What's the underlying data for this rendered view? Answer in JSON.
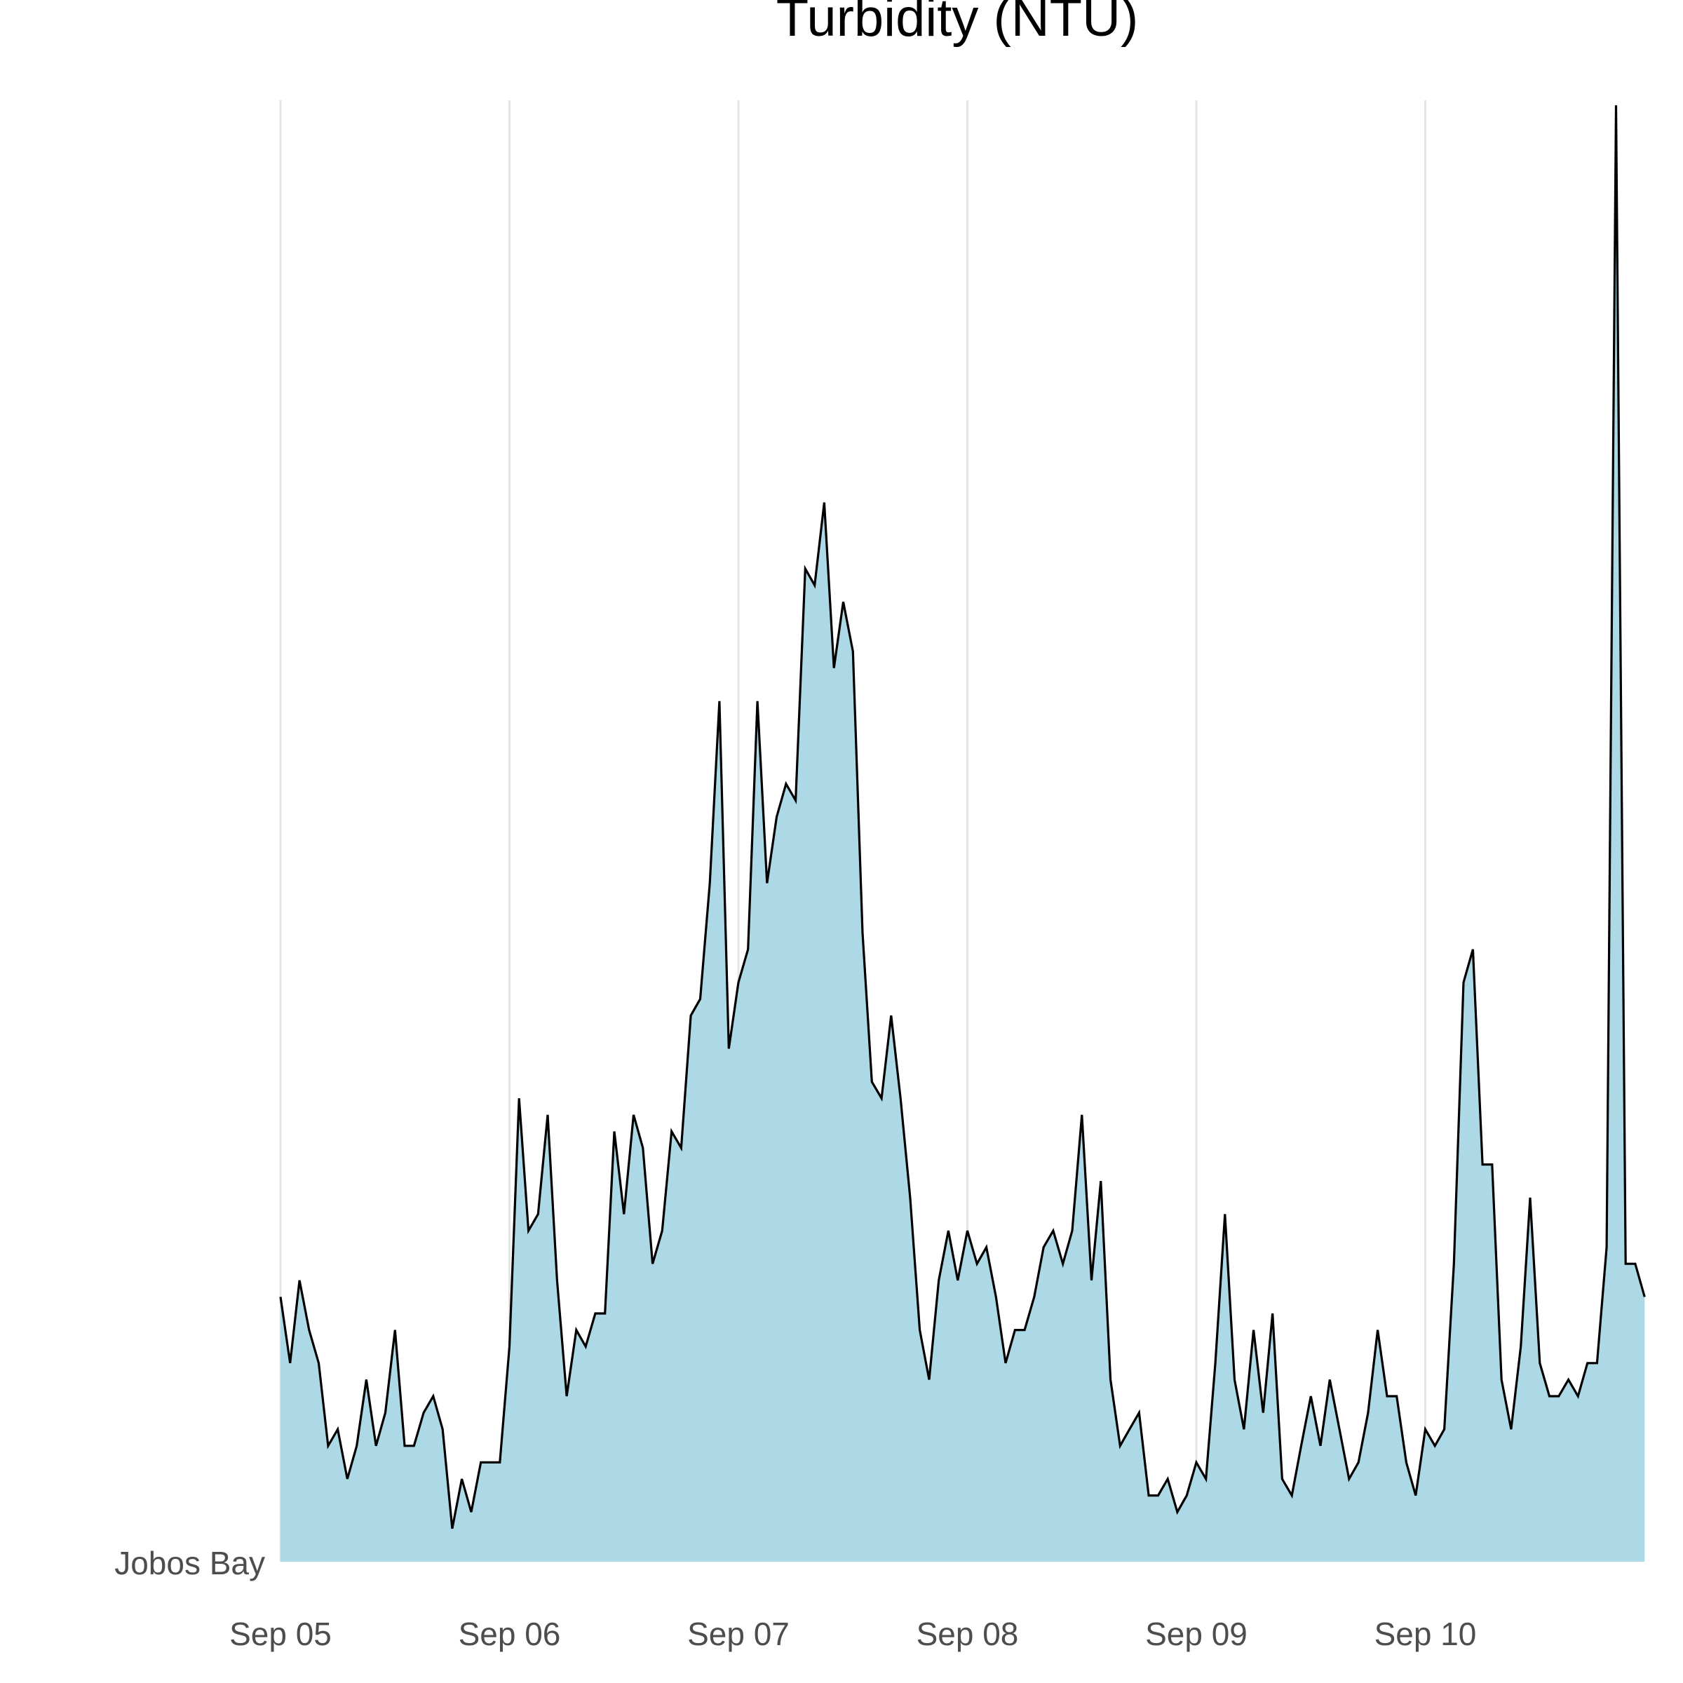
{
  "chart_data": {
    "type": "area",
    "title": "Turbidity (NTU)",
    "xlabel": "",
    "ylabel": "",
    "series_name": "Jobos Bay",
    "x_ticks": [
      "Sep 05",
      "Sep 06",
      "Sep 07",
      "Sep 08",
      "Sep 09",
      "Sep 10"
    ],
    "x_range_days": [
      0,
      5.96
    ],
    "grid": {
      "vertical": true,
      "horizontal": false
    },
    "colors": {
      "fill": "#add8e6",
      "line": "#000000",
      "grid": "#e5e5e5"
    },
    "points": [
      [
        0.0,
        160
      ],
      [
        0.042,
        120
      ],
      [
        0.083,
        170
      ],
      [
        0.125,
        140
      ],
      [
        0.167,
        120
      ],
      [
        0.208,
        70
      ],
      [
        0.25,
        80
      ],
      [
        0.292,
        50
      ],
      [
        0.333,
        70
      ],
      [
        0.375,
        110
      ],
      [
        0.417,
        70
      ],
      [
        0.458,
        90
      ],
      [
        0.5,
        140
      ],
      [
        0.542,
        70
      ],
      [
        0.583,
        70
      ],
      [
        0.625,
        90
      ],
      [
        0.667,
        100
      ],
      [
        0.708,
        80
      ],
      [
        0.75,
        20
      ],
      [
        0.792,
        50
      ],
      [
        0.833,
        30
      ],
      [
        0.875,
        60
      ],
      [
        0.917,
        60
      ],
      [
        0.958,
        60
      ],
      [
        1.0,
        130
      ],
      [
        1.042,
        280
      ],
      [
        1.083,
        200
      ],
      [
        1.125,
        210
      ],
      [
        1.167,
        270
      ],
      [
        1.208,
        170
      ],
      [
        1.25,
        100
      ],
      [
        1.292,
        140
      ],
      [
        1.333,
        130
      ],
      [
        1.375,
        150
      ],
      [
        1.417,
        150
      ],
      [
        1.458,
        260
      ],
      [
        1.5,
        210
      ],
      [
        1.542,
        270
      ],
      [
        1.583,
        250
      ],
      [
        1.625,
        180
      ],
      [
        1.667,
        200
      ],
      [
        1.708,
        260
      ],
      [
        1.75,
        250
      ],
      [
        1.792,
        330
      ],
      [
        1.833,
        340
      ],
      [
        1.875,
        410
      ],
      [
        1.917,
        520
      ],
      [
        1.958,
        310
      ],
      [
        2.0,
        350
      ],
      [
        2.042,
        370
      ],
      [
        2.083,
        520
      ],
      [
        2.125,
        410
      ],
      [
        2.167,
        450
      ],
      [
        2.208,
        470
      ],
      [
        2.25,
        460
      ],
      [
        2.292,
        600
      ],
      [
        2.333,
        590
      ],
      [
        2.375,
        640
      ],
      [
        2.417,
        540
      ],
      [
        2.458,
        580
      ],
      [
        2.5,
        550
      ],
      [
        2.542,
        380
      ],
      [
        2.583,
        290
      ],
      [
        2.625,
        280
      ],
      [
        2.667,
        330
      ],
      [
        2.708,
        280
      ],
      [
        2.75,
        220
      ],
      [
        2.792,
        140
      ],
      [
        2.833,
        110
      ],
      [
        2.875,
        170
      ],
      [
        2.917,
        200
      ],
      [
        2.958,
        170
      ],
      [
        3.0,
        200
      ],
      [
        3.042,
        180
      ],
      [
        3.083,
        190
      ],
      [
        3.125,
        160
      ],
      [
        3.167,
        120
      ],
      [
        3.208,
        140
      ],
      [
        3.25,
        140
      ],
      [
        3.292,
        160
      ],
      [
        3.333,
        190
      ],
      [
        3.375,
        200
      ],
      [
        3.417,
        180
      ],
      [
        3.458,
        200
      ],
      [
        3.5,
        270
      ],
      [
        3.542,
        170
      ],
      [
        3.583,
        230
      ],
      [
        3.625,
        110
      ],
      [
        3.667,
        70
      ],
      [
        3.708,
        80
      ],
      [
        3.75,
        90
      ],
      [
        3.792,
        40
      ],
      [
        3.833,
        40
      ],
      [
        3.875,
        50
      ],
      [
        3.917,
        30
      ],
      [
        3.958,
        40
      ],
      [
        4.0,
        60
      ],
      [
        4.042,
        50
      ],
      [
        4.083,
        120
      ],
      [
        4.125,
        210
      ],
      [
        4.167,
        110
      ],
      [
        4.208,
        80
      ],
      [
        4.25,
        140
      ],
      [
        4.292,
        90
      ],
      [
        4.333,
        150
      ],
      [
        4.375,
        50
      ],
      [
        4.417,
        40
      ],
      [
        4.458,
        70
      ],
      [
        4.5,
        100
      ],
      [
        4.542,
        70
      ],
      [
        4.583,
        110
      ],
      [
        4.625,
        80
      ],
      [
        4.667,
        50
      ],
      [
        4.708,
        60
      ],
      [
        4.75,
        90
      ],
      [
        4.792,
        140
      ],
      [
        4.833,
        100
      ],
      [
        4.875,
        100
      ],
      [
        4.917,
        60
      ],
      [
        4.958,
        40
      ],
      [
        5.0,
        80
      ],
      [
        5.042,
        70
      ],
      [
        5.083,
        80
      ],
      [
        5.125,
        180
      ],
      [
        5.167,
        350
      ],
      [
        5.208,
        370
      ],
      [
        5.25,
        240
      ],
      [
        5.292,
        240
      ],
      [
        5.333,
        110
      ],
      [
        5.375,
        80
      ],
      [
        5.417,
        130
      ],
      [
        5.458,
        220
      ],
      [
        5.5,
        120
      ],
      [
        5.542,
        100
      ],
      [
        5.583,
        100
      ],
      [
        5.625,
        110
      ],
      [
        5.667,
        100
      ],
      [
        5.708,
        120
      ],
      [
        5.75,
        120
      ],
      [
        5.792,
        190
      ],
      [
        5.833,
        880
      ],
      [
        5.875,
        180
      ],
      [
        5.917,
        180
      ],
      [
        5.958,
        160
      ]
    ]
  }
}
